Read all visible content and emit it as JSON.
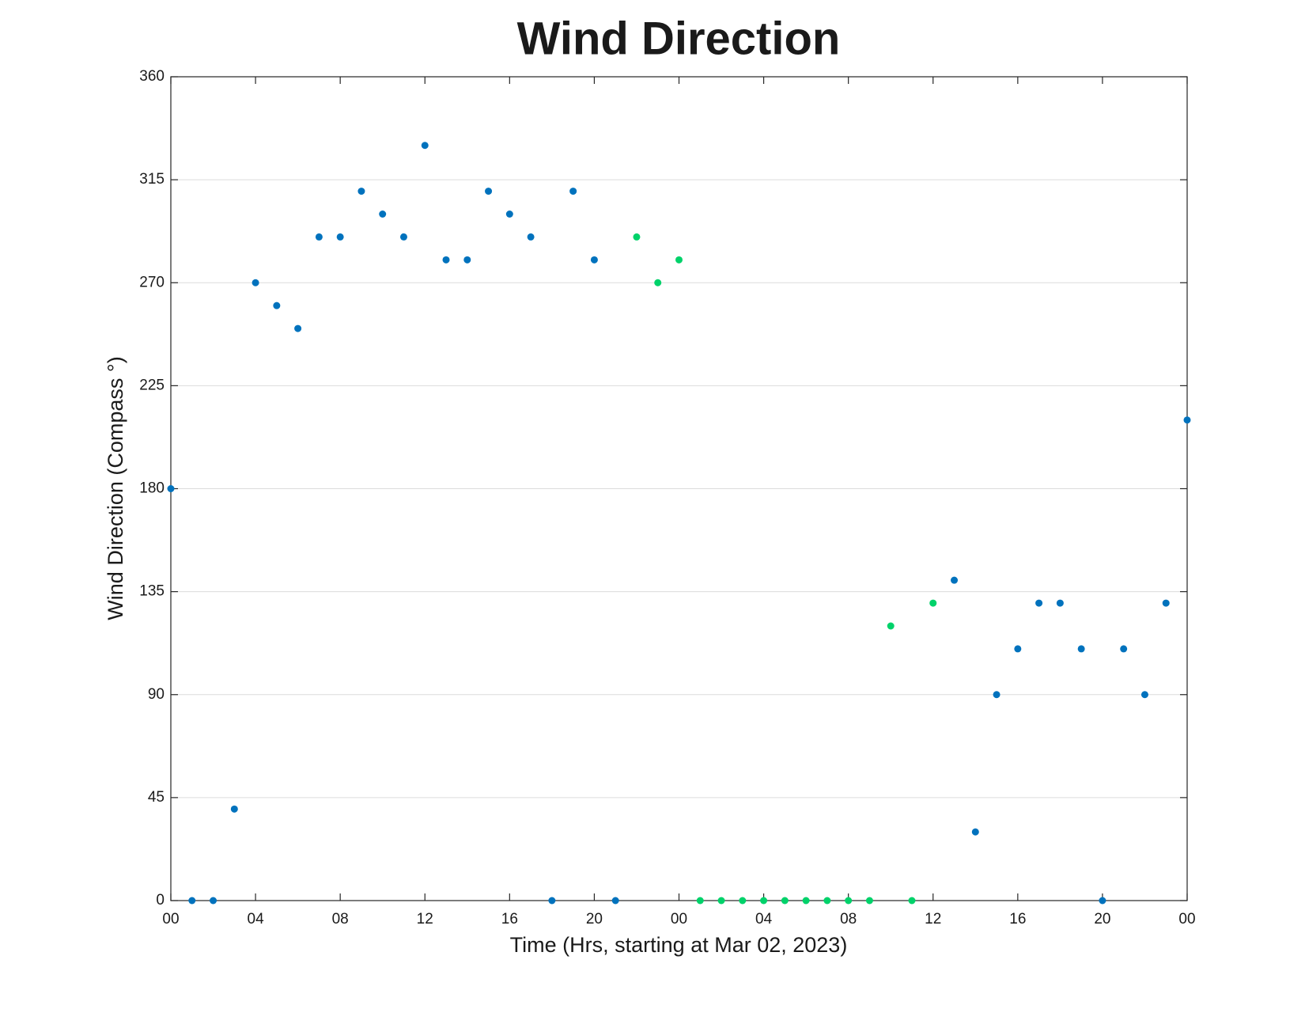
{
  "chart_data": {
    "type": "scatter",
    "title": "Wind Direction",
    "x_label": "Time (Hrs, starting at Mar 02, 2023)",
    "y_label": "Wind Direction (Compass °)",
    "series": [
      {
        "color": "#0072bd",
        "x": [
          0,
          1,
          2,
          3,
          4,
          5,
          6,
          7,
          8,
          9,
          10,
          11,
          12,
          13,
          14,
          15,
          16,
          17,
          18,
          19,
          20,
          21,
          37,
          38,
          39,
          40,
          41,
          42,
          43,
          44,
          45,
          46,
          47,
          48
        ],
        "values": [
          180,
          0,
          0,
          40,
          270,
          260,
          250,
          290,
          290,
          310,
          300,
          290,
          330,
          280,
          280,
          310,
          300,
          290,
          0,
          310,
          280,
          0,
          140,
          30,
          90,
          110,
          130,
          130,
          110,
          0,
          110,
          90,
          130,
          210
        ]
      },
      {
        "color": "#00d26a",
        "x": [
          22,
          23,
          24,
          25,
          26,
          27,
          28,
          29,
          30,
          31,
          32,
          33,
          34,
          35,
          36
        ],
        "values": [
          290,
          270,
          280,
          0,
          0,
          0,
          0,
          0,
          0,
          0,
          0,
          0,
          120,
          0,
          130
        ]
      }
    ],
    "xlim": [
      0,
      48
    ],
    "xticks": [
      {
        "value": 0,
        "label": "00"
      },
      {
        "value": 4,
        "label": "04"
      },
      {
        "value": 8,
        "label": "08"
      },
      {
        "value": 12,
        "label": "12"
      },
      {
        "value": 16,
        "label": "16"
      },
      {
        "value": 20,
        "label": "20"
      },
      {
        "value": 24,
        "label": "00"
      },
      {
        "value": 28,
        "label": "04"
      },
      {
        "value": 32,
        "label": "08"
      },
      {
        "value": 36,
        "label": "12"
      },
      {
        "value": 40,
        "label": "16"
      },
      {
        "value": 44,
        "label": "20"
      },
      {
        "value": 48,
        "label": "00"
      }
    ],
    "ylim": [
      0,
      360
    ],
    "yticks": [
      0,
      45,
      90,
      135,
      180,
      225,
      270,
      315,
      360
    ],
    "grid": "y"
  }
}
